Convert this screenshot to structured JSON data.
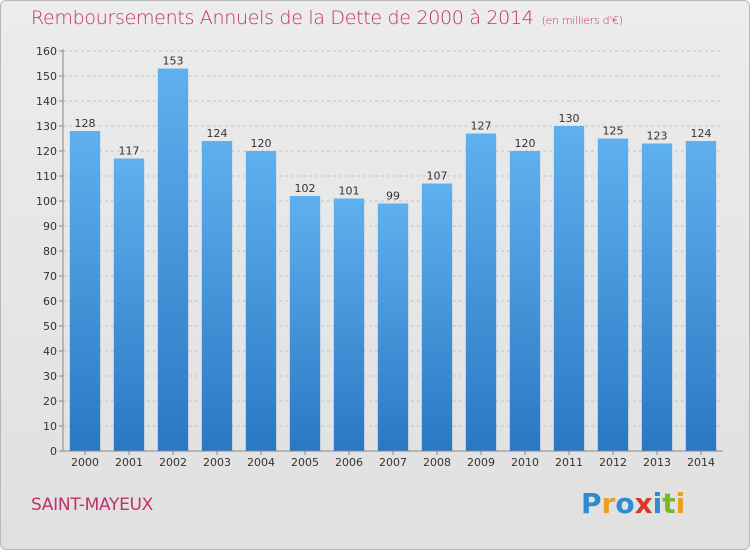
{
  "chart_data": {
    "type": "bar",
    "title": "Remboursements Annuels de la Dette de 2000 à 2014",
    "subtitle": "(en milliers d'€)",
    "categories": [
      "2000",
      "2001",
      "2002",
      "2003",
      "2004",
      "2005",
      "2006",
      "2007",
      "2008",
      "2009",
      "2010",
      "2011",
      "2012",
      "2013",
      "2014"
    ],
    "values": [
      128,
      117,
      153,
      124,
      120,
      102,
      101,
      99,
      107,
      127,
      120,
      130,
      125,
      123,
      124
    ],
    "ylim": [
      0,
      160
    ],
    "yticks": [
      0,
      10,
      20,
      30,
      40,
      50,
      60,
      70,
      80,
      90,
      100,
      110,
      120,
      130,
      140,
      150,
      160
    ],
    "grid": true,
    "legend": "none",
    "bar_color": "#3a8fd9"
  },
  "footer": {
    "commune": "SAINT-MAYEUX",
    "logo_letters": [
      {
        "ch": "P",
        "color": "#2e8bd0"
      },
      {
        "ch": "r",
        "color": "#e8a020"
      },
      {
        "ch": "o",
        "color": "#2e8bd0"
      },
      {
        "ch": "x",
        "color": "#d63a2a"
      },
      {
        "ch": "i",
        "color": "#2e8bd0"
      },
      {
        "ch": "t",
        "color": "#7ab82e"
      },
      {
        "ch": "i",
        "color": "#e8a020"
      }
    ]
  }
}
